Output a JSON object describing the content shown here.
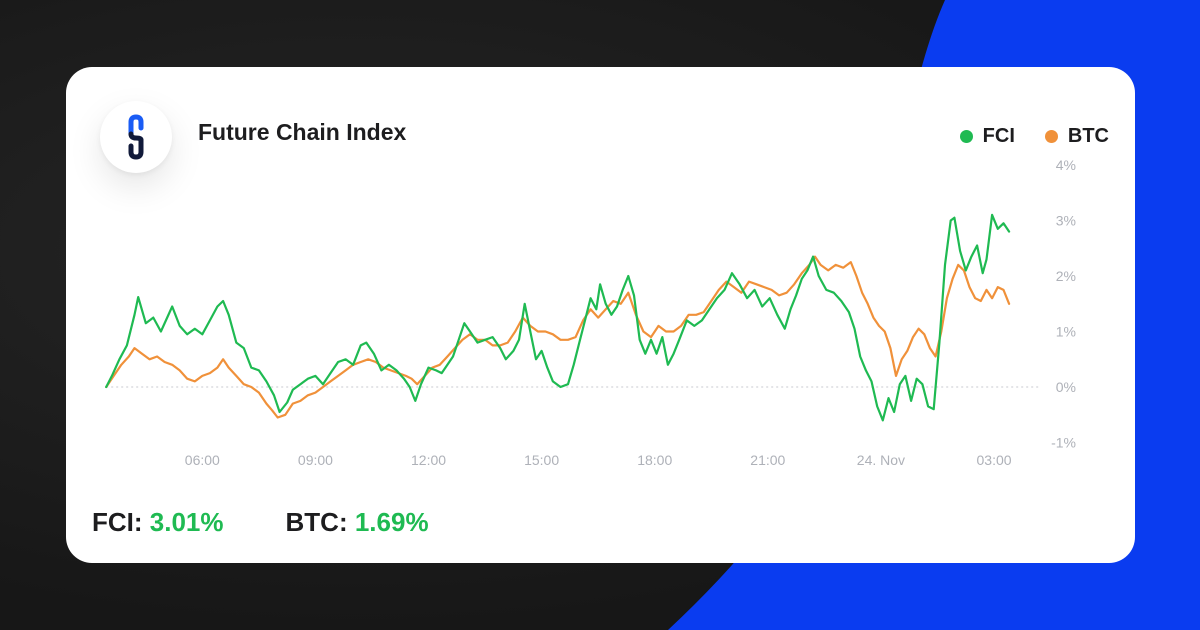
{
  "colors": {
    "fci": "#1fba52",
    "btc": "#f0913a",
    "accent_blue": "#0a3cf0",
    "card_bg": "#ffffff",
    "page_bg": "#1b1b1b",
    "logo_dark": "#111a3a",
    "logo_blue": "#1a5cf5"
  },
  "logo": {
    "icon": "chain-link-icon"
  },
  "header": {
    "title": "Future Chain Index"
  },
  "legend": [
    {
      "label": "FCI",
      "color": "#1fba52"
    },
    {
      "label": "BTC",
      "color": "#f0913a"
    }
  ],
  "stats": [
    {
      "name": "FCI:",
      "value": "3.01%"
    },
    {
      "name": "BTC:",
      "value": "1.69%"
    }
  ],
  "chart_data": {
    "type": "line",
    "title": "",
    "xlabel": "",
    "ylabel": "",
    "x_tick_labels": [
      "06:00",
      "09:00",
      "12:00",
      "15:00",
      "18:00",
      "21:00",
      "24. Nov",
      "03:00"
    ],
    "x_tick_hours": [
      6,
      9,
      12,
      15,
      18,
      21,
      24,
      27
    ],
    "y_tick_labels": [
      "-1%",
      "0%",
      "1%",
      "2%",
      "3%",
      "4%"
    ],
    "y_ticks": [
      -1,
      0,
      1,
      2,
      3,
      4
    ],
    "ylim": [
      -1,
      4
    ],
    "xlim": [
      3.1,
      28.4
    ],
    "grid": false,
    "zero_line": true,
    "legend_position": "top-right",
    "series": [
      {
        "name": "FCI",
        "color": "#1fba52",
        "points": [
          [
            3.45,
            0.0
          ],
          [
            3.6,
            0.2
          ],
          [
            3.8,
            0.5
          ],
          [
            4.0,
            0.75
          ],
          [
            4.2,
            1.3
          ],
          [
            4.3,
            1.62
          ],
          [
            4.5,
            1.15
          ],
          [
            4.7,
            1.25
          ],
          [
            4.9,
            1.0
          ],
          [
            5.2,
            1.45
          ],
          [
            5.4,
            1.1
          ],
          [
            5.6,
            0.95
          ],
          [
            5.8,
            1.05
          ],
          [
            6.0,
            0.95
          ],
          [
            6.2,
            1.2
          ],
          [
            6.4,
            1.45
          ],
          [
            6.55,
            1.55
          ],
          [
            6.7,
            1.3
          ],
          [
            6.9,
            0.8
          ],
          [
            7.1,
            0.7
          ],
          [
            7.3,
            0.35
          ],
          [
            7.5,
            0.3
          ],
          [
            7.7,
            0.1
          ],
          [
            7.9,
            -0.15
          ],
          [
            8.05,
            -0.45
          ],
          [
            8.25,
            -0.28
          ],
          [
            8.4,
            -0.05
          ],
          [
            8.6,
            0.05
          ],
          [
            8.8,
            0.15
          ],
          [
            9.0,
            0.2
          ],
          [
            9.2,
            0.05
          ],
          [
            9.4,
            0.25
          ],
          [
            9.6,
            0.45
          ],
          [
            9.8,
            0.5
          ],
          [
            10.0,
            0.4
          ],
          [
            10.2,
            0.75
          ],
          [
            10.35,
            0.8
          ],
          [
            10.55,
            0.6
          ],
          [
            10.75,
            0.3
          ],
          [
            10.95,
            0.4
          ],
          [
            11.15,
            0.3
          ],
          [
            11.35,
            0.15
          ],
          [
            11.5,
            0.0
          ],
          [
            11.65,
            -0.25
          ],
          [
            11.8,
            0.05
          ],
          [
            12.0,
            0.35
          ],
          [
            12.2,
            0.3
          ],
          [
            12.35,
            0.25
          ],
          [
            12.5,
            0.4
          ],
          [
            12.65,
            0.55
          ],
          [
            12.8,
            0.85
          ],
          [
            12.95,
            1.15
          ],
          [
            13.1,
            1.0
          ],
          [
            13.3,
            0.8
          ],
          [
            13.5,
            0.85
          ],
          [
            13.7,
            0.9
          ],
          [
            13.9,
            0.7
          ],
          [
            14.05,
            0.5
          ],
          [
            14.25,
            0.65
          ],
          [
            14.4,
            0.85
          ],
          [
            14.55,
            1.5
          ],
          [
            14.7,
            1.0
          ],
          [
            14.85,
            0.5
          ],
          [
            15.0,
            0.65
          ],
          [
            15.15,
            0.35
          ],
          [
            15.3,
            0.1
          ],
          [
            15.5,
            0.0
          ],
          [
            15.7,
            0.05
          ],
          [
            15.85,
            0.4
          ],
          [
            16.0,
            0.8
          ],
          [
            16.15,
            1.2
          ],
          [
            16.3,
            1.6
          ],
          [
            16.45,
            1.4
          ],
          [
            16.55,
            1.85
          ],
          [
            16.7,
            1.5
          ],
          [
            16.85,
            1.3
          ],
          [
            17.0,
            1.45
          ],
          [
            17.15,
            1.75
          ],
          [
            17.3,
            2.0
          ],
          [
            17.45,
            1.65
          ],
          [
            17.6,
            0.85
          ],
          [
            17.75,
            0.6
          ],
          [
            17.9,
            0.85
          ],
          [
            18.05,
            0.6
          ],
          [
            18.2,
            0.9
          ],
          [
            18.35,
            0.4
          ],
          [
            18.5,
            0.6
          ],
          [
            18.65,
            0.85
          ],
          [
            18.85,
            1.2
          ],
          [
            19.05,
            1.1
          ],
          [
            19.25,
            1.2
          ],
          [
            19.45,
            1.4
          ],
          [
            19.65,
            1.6
          ],
          [
            19.85,
            1.75
          ],
          [
            20.05,
            2.05
          ],
          [
            20.25,
            1.85
          ],
          [
            20.45,
            1.6
          ],
          [
            20.65,
            1.75
          ],
          [
            20.85,
            1.45
          ],
          [
            21.05,
            1.6
          ],
          [
            21.25,
            1.3
          ],
          [
            21.45,
            1.05
          ],
          [
            21.6,
            1.4
          ],
          [
            21.75,
            1.65
          ],
          [
            21.9,
            1.95
          ],
          [
            22.05,
            2.1
          ],
          [
            22.2,
            2.35
          ],
          [
            22.35,
            2.0
          ],
          [
            22.55,
            1.75
          ],
          [
            22.75,
            1.7
          ],
          [
            22.95,
            1.55
          ],
          [
            23.15,
            1.35
          ],
          [
            23.3,
            1.05
          ],
          [
            23.45,
            0.55
          ],
          [
            23.6,
            0.3
          ],
          [
            23.75,
            0.1
          ],
          [
            23.9,
            -0.35
          ],
          [
            24.05,
            -0.6
          ],
          [
            24.2,
            -0.2
          ],
          [
            24.35,
            -0.45
          ],
          [
            24.5,
            0.05
          ],
          [
            24.65,
            0.2
          ],
          [
            24.8,
            -0.25
          ],
          [
            24.95,
            0.15
          ],
          [
            25.1,
            0.05
          ],
          [
            25.25,
            -0.35
          ],
          [
            25.4,
            -0.4
          ],
          [
            25.55,
            0.8
          ],
          [
            25.7,
            2.2
          ],
          [
            25.85,
            3.0
          ],
          [
            25.95,
            3.05
          ],
          [
            26.1,
            2.45
          ],
          [
            26.25,
            2.1
          ],
          [
            26.4,
            2.35
          ],
          [
            26.55,
            2.55
          ],
          [
            26.7,
            2.05
          ],
          [
            26.8,
            2.3
          ],
          [
            26.95,
            3.1
          ],
          [
            27.1,
            2.85
          ],
          [
            27.25,
            2.95
          ],
          [
            27.4,
            2.8
          ]
        ]
      },
      {
        "name": "BTC",
        "color": "#f0913a",
        "points": [
          [
            3.45,
            0.0
          ],
          [
            3.65,
            0.2
          ],
          [
            3.85,
            0.4
          ],
          [
            4.05,
            0.55
          ],
          [
            4.2,
            0.7
          ],
          [
            4.4,
            0.6
          ],
          [
            4.6,
            0.5
          ],
          [
            4.8,
            0.55
          ],
          [
            5.0,
            0.45
          ],
          [
            5.2,
            0.4
          ],
          [
            5.4,
            0.3
          ],
          [
            5.6,
            0.15
          ],
          [
            5.8,
            0.1
          ],
          [
            6.0,
            0.2
          ],
          [
            6.2,
            0.25
          ],
          [
            6.4,
            0.35
          ],
          [
            6.55,
            0.5
          ],
          [
            6.7,
            0.35
          ],
          [
            6.9,
            0.2
          ],
          [
            7.1,
            0.05
          ],
          [
            7.3,
            0.0
          ],
          [
            7.5,
            -0.1
          ],
          [
            7.7,
            -0.3
          ],
          [
            7.85,
            -0.42
          ],
          [
            8.0,
            -0.55
          ],
          [
            8.2,
            -0.5
          ],
          [
            8.4,
            -0.3
          ],
          [
            8.6,
            -0.25
          ],
          [
            8.8,
            -0.15
          ],
          [
            9.0,
            -0.1
          ],
          [
            9.2,
            0.0
          ],
          [
            9.4,
            0.1
          ],
          [
            9.6,
            0.2
          ],
          [
            9.8,
            0.3
          ],
          [
            10.0,
            0.4
          ],
          [
            10.2,
            0.45
          ],
          [
            10.4,
            0.5
          ],
          [
            10.6,
            0.45
          ],
          [
            10.8,
            0.35
          ],
          [
            11.0,
            0.3
          ],
          [
            11.2,
            0.25
          ],
          [
            11.4,
            0.2
          ],
          [
            11.55,
            0.15
          ],
          [
            11.7,
            0.05
          ],
          [
            11.9,
            0.2
          ],
          [
            12.1,
            0.35
          ],
          [
            12.3,
            0.4
          ],
          [
            12.5,
            0.55
          ],
          [
            12.7,
            0.7
          ],
          [
            12.9,
            0.85
          ],
          [
            13.1,
            0.95
          ],
          [
            13.3,
            0.85
          ],
          [
            13.5,
            0.85
          ],
          [
            13.7,
            0.75
          ],
          [
            13.9,
            0.75
          ],
          [
            14.1,
            0.8
          ],
          [
            14.3,
            1.0
          ],
          [
            14.5,
            1.25
          ],
          [
            14.7,
            1.1
          ],
          [
            14.9,
            1.0
          ],
          [
            15.1,
            1.0
          ],
          [
            15.3,
            0.95
          ],
          [
            15.5,
            0.85
          ],
          [
            15.7,
            0.85
          ],
          [
            15.9,
            0.9
          ],
          [
            16.1,
            1.2
          ],
          [
            16.3,
            1.4
          ],
          [
            16.5,
            1.25
          ],
          [
            16.7,
            1.4
          ],
          [
            16.9,
            1.55
          ],
          [
            17.1,
            1.5
          ],
          [
            17.3,
            1.7
          ],
          [
            17.5,
            1.3
          ],
          [
            17.7,
            1.0
          ],
          [
            17.9,
            0.9
          ],
          [
            18.1,
            1.1
          ],
          [
            18.3,
            1.0
          ],
          [
            18.5,
            1.0
          ],
          [
            18.7,
            1.1
          ],
          [
            18.9,
            1.3
          ],
          [
            19.1,
            1.3
          ],
          [
            19.3,
            1.35
          ],
          [
            19.5,
            1.55
          ],
          [
            19.7,
            1.75
          ],
          [
            19.9,
            1.9
          ],
          [
            20.1,
            1.8
          ],
          [
            20.3,
            1.7
          ],
          [
            20.5,
            1.9
          ],
          [
            20.7,
            1.85
          ],
          [
            20.9,
            1.8
          ],
          [
            21.1,
            1.75
          ],
          [
            21.3,
            1.65
          ],
          [
            21.5,
            1.7
          ],
          [
            21.7,
            1.85
          ],
          [
            21.9,
            2.05
          ],
          [
            22.1,
            2.2
          ],
          [
            22.25,
            2.35
          ],
          [
            22.4,
            2.2
          ],
          [
            22.6,
            2.1
          ],
          [
            22.8,
            2.2
          ],
          [
            23.0,
            2.15
          ],
          [
            23.2,
            2.25
          ],
          [
            23.35,
            2.0
          ],
          [
            23.5,
            1.7
          ],
          [
            23.65,
            1.5
          ],
          [
            23.8,
            1.25
          ],
          [
            23.95,
            1.1
          ],
          [
            24.1,
            1.0
          ],
          [
            24.25,
            0.7
          ],
          [
            24.4,
            0.2
          ],
          [
            24.55,
            0.5
          ],
          [
            24.7,
            0.65
          ],
          [
            24.85,
            0.9
          ],
          [
            25.0,
            1.05
          ],
          [
            25.15,
            0.95
          ],
          [
            25.3,
            0.7
          ],
          [
            25.45,
            0.55
          ],
          [
            25.6,
            1.0
          ],
          [
            25.75,
            1.6
          ],
          [
            25.9,
            1.95
          ],
          [
            26.05,
            2.2
          ],
          [
            26.2,
            2.1
          ],
          [
            26.35,
            1.8
          ],
          [
            26.5,
            1.6
          ],
          [
            26.65,
            1.55
          ],
          [
            26.8,
            1.75
          ],
          [
            26.95,
            1.6
          ],
          [
            27.1,
            1.8
          ],
          [
            27.25,
            1.75
          ],
          [
            27.4,
            1.5
          ]
        ]
      }
    ]
  }
}
